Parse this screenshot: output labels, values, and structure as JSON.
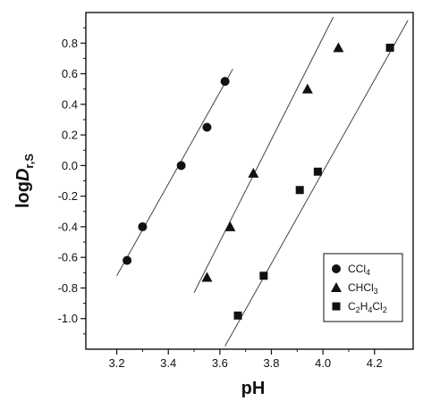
{
  "chart_data": {
    "type": "scatter",
    "xlabel": "pH",
    "ylabel": {
      "prefix": "log",
      "main": "D",
      "subscript": "r,S"
    },
    "xlim": [
      3.08,
      4.35
    ],
    "ylim": [
      -1.2,
      1.0
    ],
    "xticks": [
      3.2,
      3.4,
      3.6,
      3.8,
      4.0,
      4.2
    ],
    "xtick_labels": [
      "3.2",
      "3.4",
      "3.6",
      "3.8",
      "4.0",
      "4.2"
    ],
    "yticks": [
      -1.0,
      -0.8,
      -0.6,
      -0.4,
      -0.2,
      0.0,
      0.2,
      0.4,
      0.6,
      0.8
    ],
    "ytick_labels": [
      "-1.0",
      "-0.8",
      "-0.6",
      "-0.4",
      "-0.2",
      "0.0",
      "0.2",
      "0.4",
      "0.6",
      "0.8"
    ],
    "grid": false,
    "legend_position": "bottom-right",
    "series": [
      {
        "name": "CCl4",
        "legend": {
          "main": "CCl",
          "sub": "4"
        },
        "marker": "circle",
        "points": [
          [
            3.24,
            -0.62
          ],
          [
            3.3,
            -0.4
          ],
          [
            3.45,
            0.0
          ],
          [
            3.55,
            0.25
          ],
          [
            3.62,
            0.55
          ]
        ],
        "fit_line": [
          [
            3.2,
            -0.72
          ],
          [
            3.65,
            0.63
          ]
        ]
      },
      {
        "name": "CHCl3",
        "legend": {
          "main": "CHCl",
          "sub": "3"
        },
        "marker": "triangle",
        "points": [
          [
            3.55,
            -0.73
          ],
          [
            3.64,
            -0.4
          ],
          [
            3.73,
            -0.05
          ],
          [
            3.94,
            0.5
          ],
          [
            4.06,
            0.77
          ]
        ],
        "fit_line": [
          [
            3.5,
            -0.83
          ],
          [
            4.04,
            0.97
          ]
        ]
      },
      {
        "name": "C2H4Cl2",
        "legend": {
          "parts": [
            [
              "C",
              ""
            ],
            [
              "2",
              "sub"
            ],
            [
              "H",
              ""
            ],
            [
              "4",
              "sub"
            ],
            [
              "Cl",
              ""
            ],
            [
              "2",
              "sub"
            ]
          ]
        },
        "marker": "square",
        "points": [
          [
            3.67,
            -0.98
          ],
          [
            3.77,
            -0.72
          ],
          [
            3.91,
            -0.16
          ],
          [
            3.98,
            -0.04
          ],
          [
            4.26,
            0.77
          ]
        ],
        "fit_line": [
          [
            3.62,
            -1.18
          ],
          [
            4.33,
            0.95
          ]
        ]
      }
    ],
    "colors": {
      "marker": "#111111",
      "line": "#444444",
      "axis": "#111111"
    }
  }
}
